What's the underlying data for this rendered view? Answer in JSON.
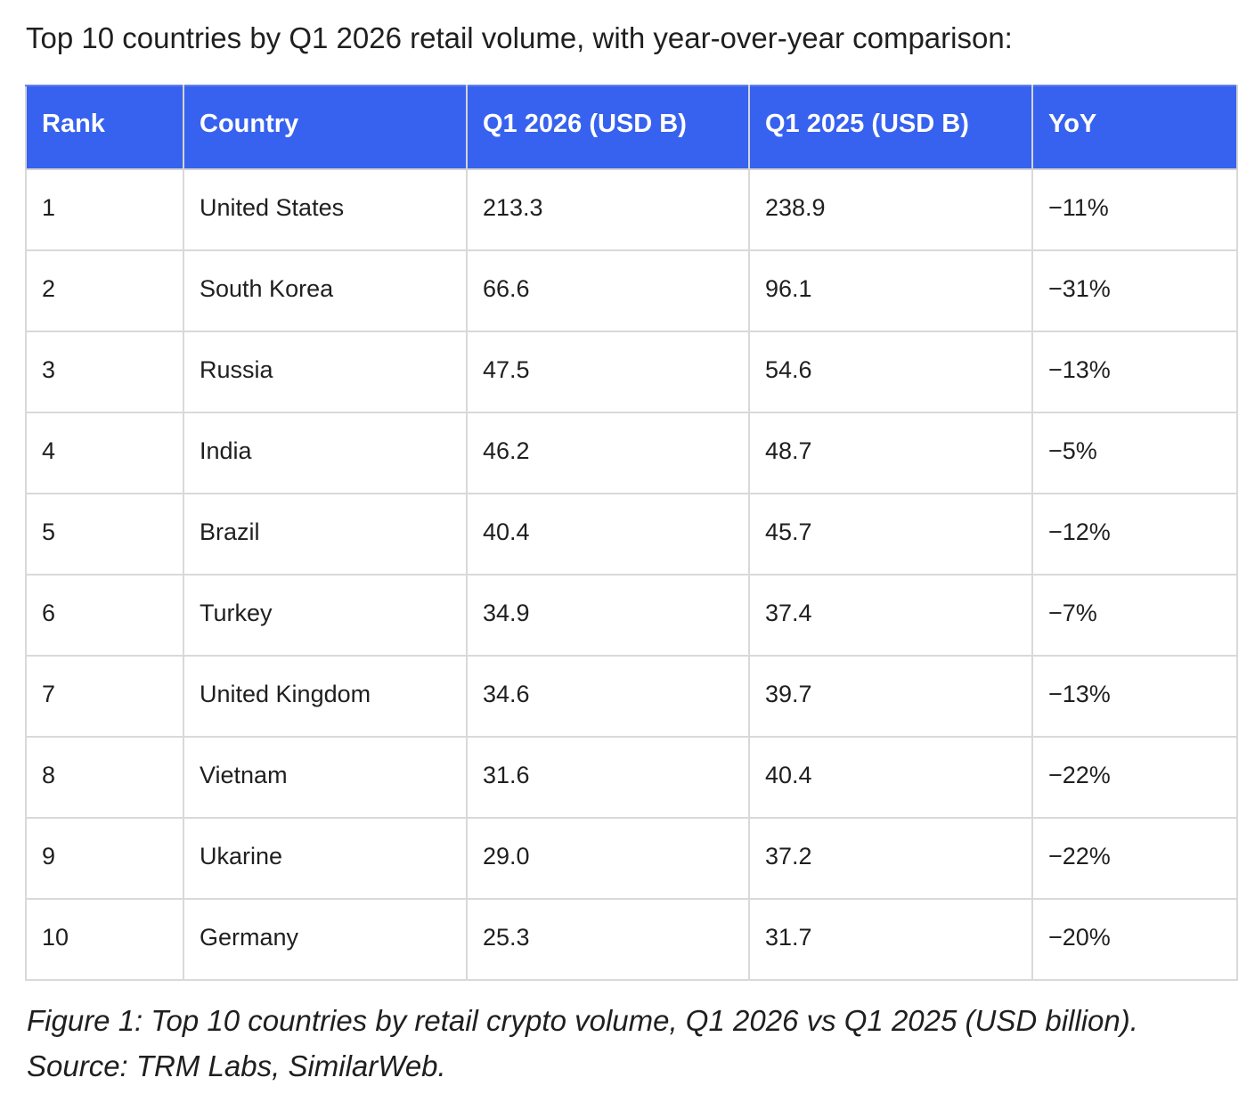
{
  "intro": "Top 10 countries by Q1 2026 retail volume, with year-over-year comparison:",
  "table": {
    "headers": [
      "Rank",
      "Country",
      "Q1 2026 (USD B)",
      "Q1 2025 (USD B)",
      "YoY"
    ],
    "rows": [
      [
        "1",
        "United States",
        "213.3",
        "238.9",
        "−11%"
      ],
      [
        "2",
        "South Korea",
        "66.6",
        "96.1",
        "−31%"
      ],
      [
        "3",
        "Russia",
        "47.5",
        "54.6",
        "−13%"
      ],
      [
        "4",
        "India",
        "46.2",
        "48.7",
        "−5%"
      ],
      [
        "5",
        "Brazil",
        "40.4",
        "45.7",
        "−12%"
      ],
      [
        "6",
        "Turkey",
        "34.9",
        "37.4",
        "−7%"
      ],
      [
        "7",
        "United Kingdom",
        "34.6",
        "39.7",
        "−13%"
      ],
      [
        "8",
        "Vietnam",
        "31.6",
        "40.4",
        "−22%"
      ],
      [
        "9",
        "Ukarine",
        "29.0",
        "37.2",
        "−22%"
      ],
      [
        "10",
        "Germany",
        "25.3",
        "31.7",
        "−20%"
      ]
    ]
  },
  "caption": "Figure 1: Top 10 countries by retail crypto volume, Q1 2026 vs Q1 2025 (USD billion). Source: TRM Labs, SimilarWeb.",
  "colors": {
    "header_background": "#3762ef",
    "header_text": "#ffffff",
    "grid_lines": "#d9d9d9"
  }
}
